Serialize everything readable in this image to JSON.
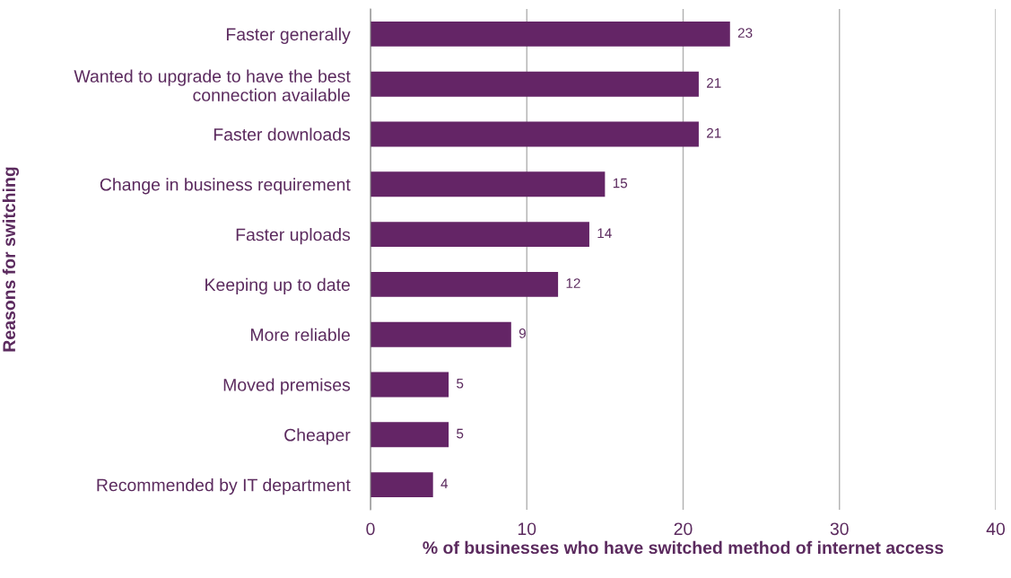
{
  "chart_data": {
    "type": "bar",
    "orientation": "horizontal",
    "xlabel": "% of businesses who have switched method of internet access",
    "ylabel": "Reasons for switching",
    "categories": [
      "Faster generally",
      "Wanted to upgrade to have the best\nconnection available",
      "Faster downloads",
      "Change in business requirement",
      "Faster uploads",
      "Keeping up to date",
      "More reliable",
      "Moved premises",
      "Cheaper",
      "Recommended by IT department"
    ],
    "values": [
      23,
      21,
      21,
      15,
      14,
      12,
      9,
      5,
      5,
      4
    ],
    "color": "#642566",
    "xlim": [
      0,
      40
    ],
    "xticks": [
      0,
      10,
      20,
      30,
      40
    ],
    "grid": "x",
    "data_labels": true,
    "legend": false
  }
}
